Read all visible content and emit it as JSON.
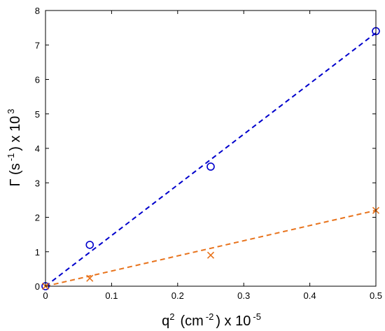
{
  "chart_data": {
    "type": "scatter",
    "title": "",
    "xlabel": {
      "base": "q",
      "sup1": "2",
      "mid": "(cm",
      "sup2": "-2",
      "end": ") x 10",
      "sup3": "-5"
    },
    "ylabel": {
      "base": "Γ (s",
      "sup1": "-1",
      "mid": ") x 10",
      "sup2": "3"
    },
    "xlim": [
      0,
      0.5
    ],
    "ylim": [
      0,
      8
    ],
    "xticks": [
      "0",
      "0.1",
      "0.2",
      "0.3",
      "0.4",
      "0.5"
    ],
    "yticks": [
      "0",
      "1",
      "2",
      "3",
      "4",
      "5",
      "6",
      "7",
      "8"
    ],
    "grid": false,
    "series": [
      {
        "marker": "circle",
        "color": "#0000cc",
        "points": [
          [
            0,
            0
          ],
          [
            0.067,
            1.2
          ],
          [
            0.25,
            3.47
          ],
          [
            0.5,
            7.4
          ]
        ],
        "fit": {
          "x": [
            0,
            0.5
          ],
          "y": [
            0,
            7.35
          ],
          "style": "dashed"
        }
      },
      {
        "marker": "x",
        "color": "#e8731c",
        "points": [
          [
            0,
            0
          ],
          [
            0.067,
            0.23
          ],
          [
            0.25,
            0.9
          ],
          [
            0.5,
            2.2
          ]
        ],
        "fit": {
          "x": [
            0,
            0.5
          ],
          "y": [
            0,
            2.2
          ],
          "style": "dashed"
        }
      }
    ]
  }
}
